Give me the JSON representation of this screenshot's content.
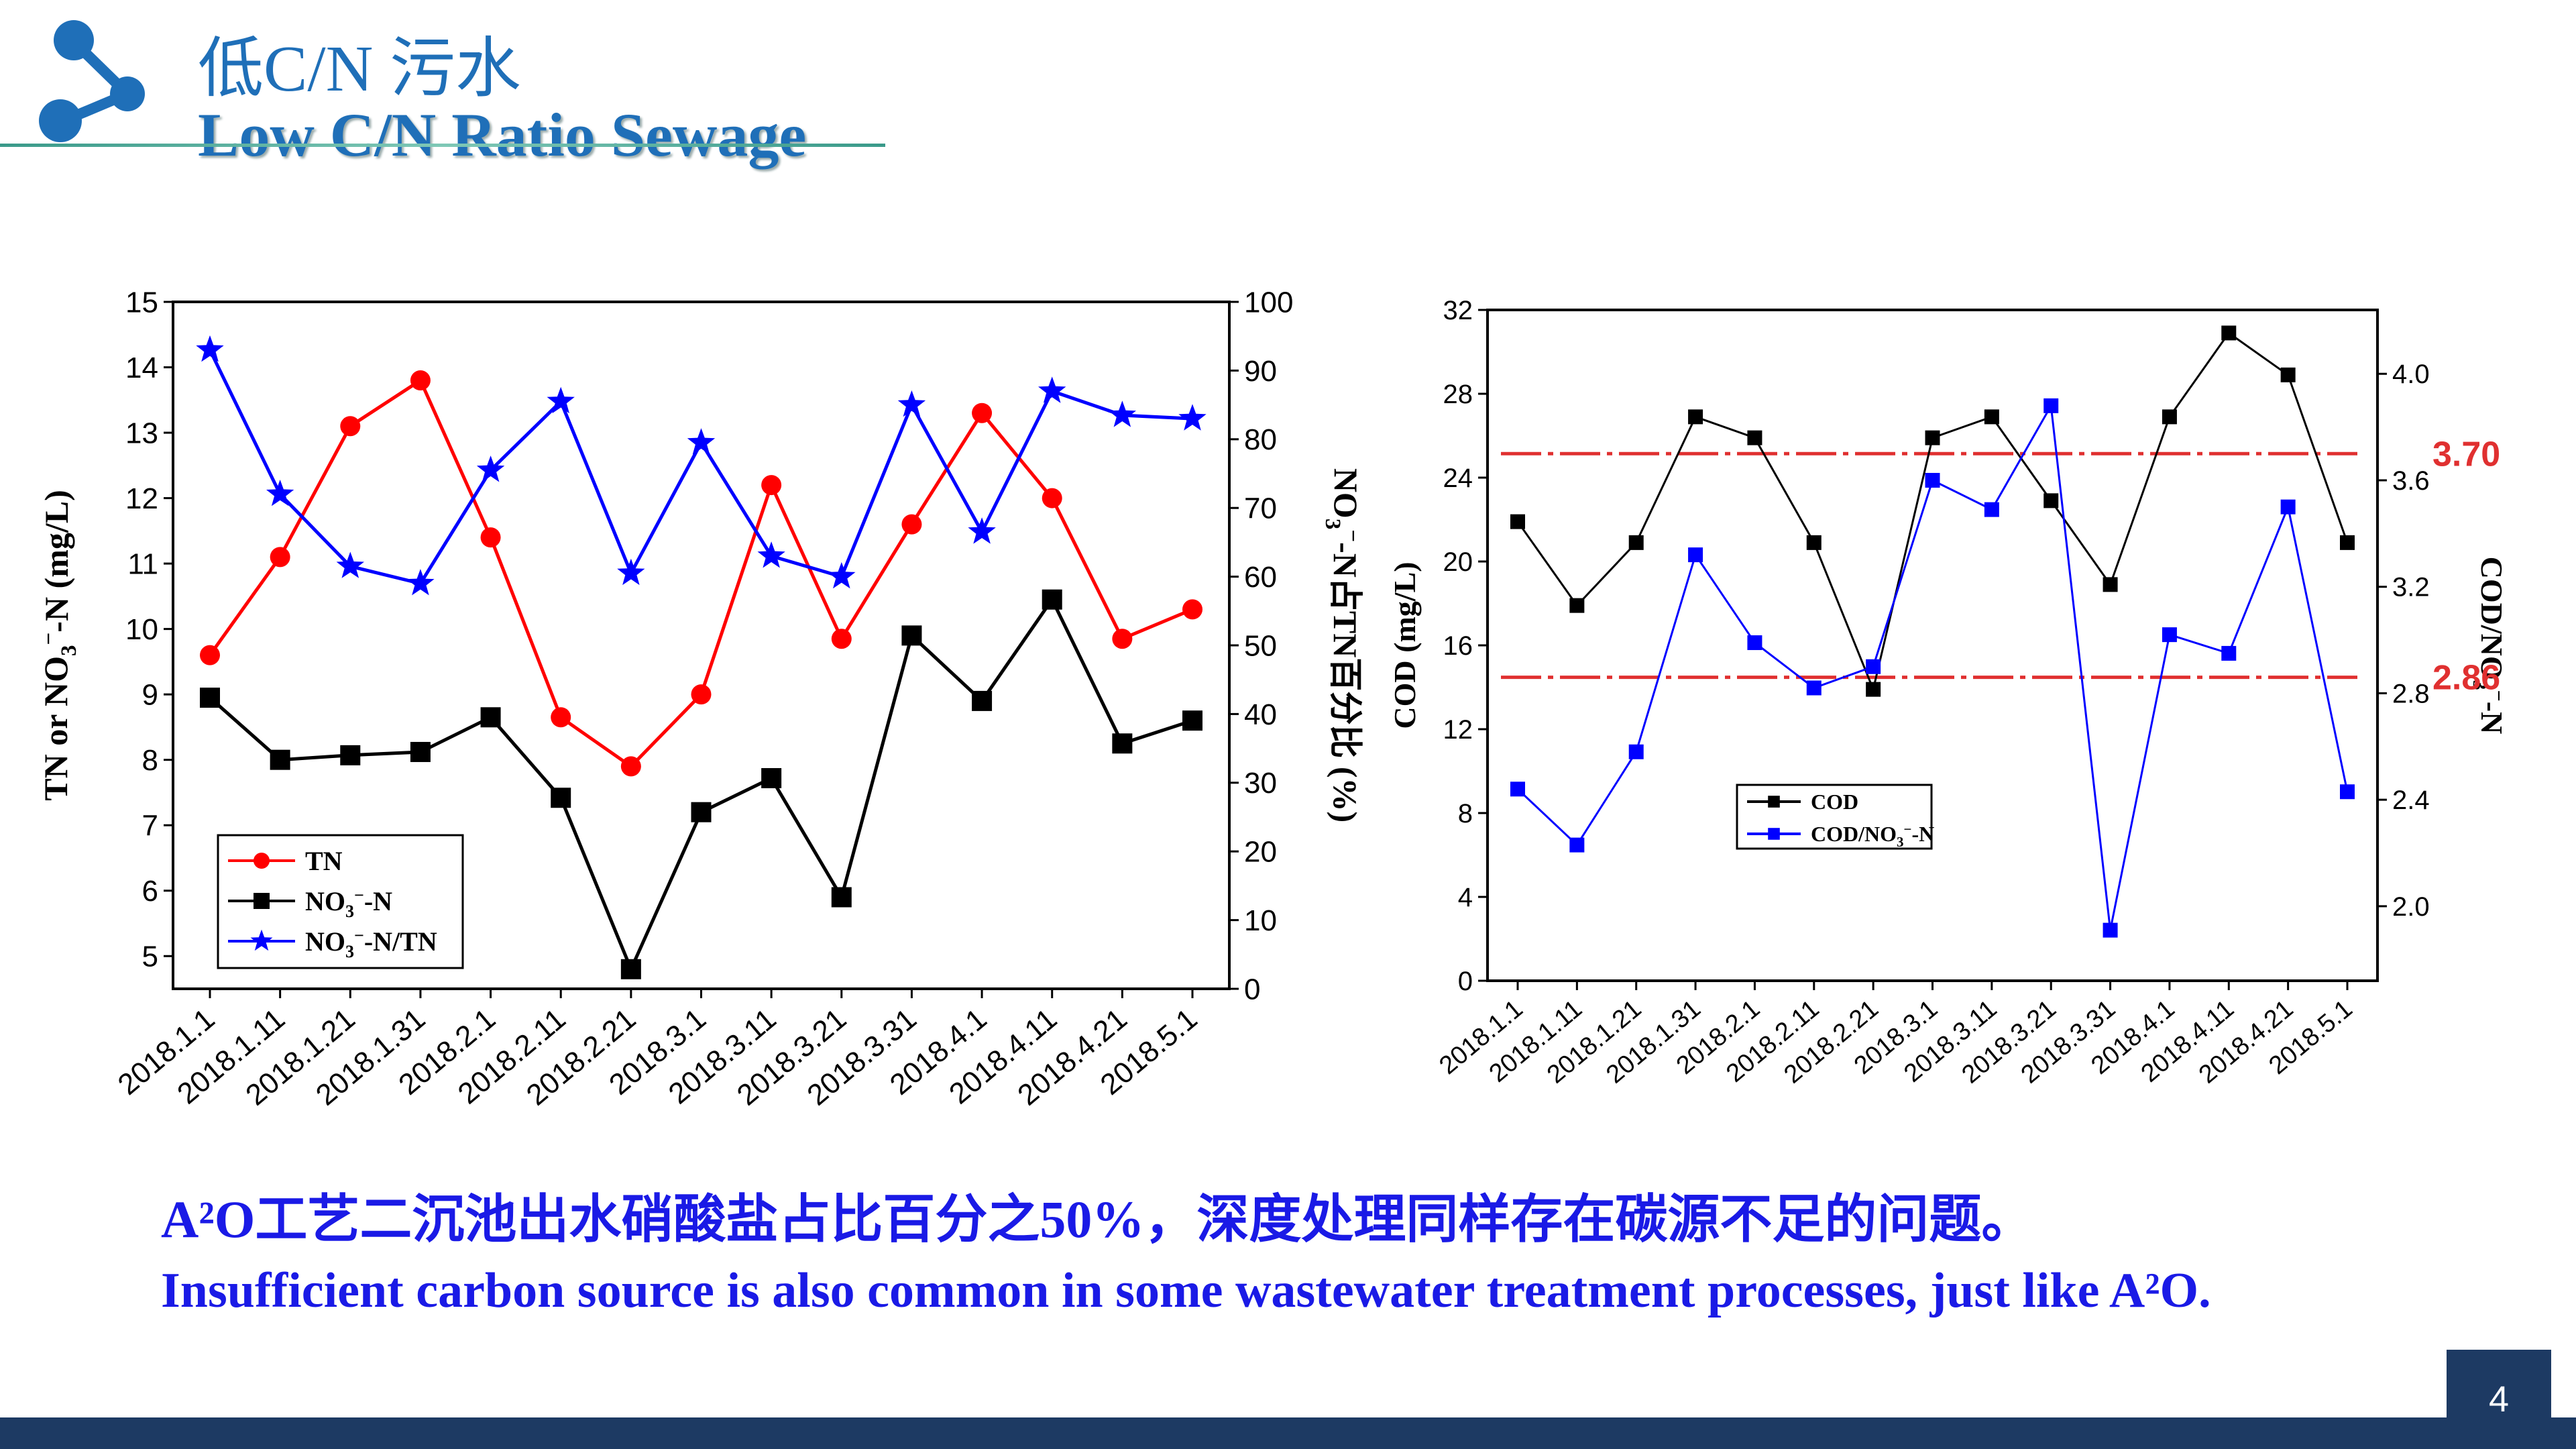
{
  "header": {
    "title_cn": "低C/N 污水",
    "title_en": "Low C/N Ratio Sewage",
    "logo_icon": "molecule-icon",
    "accent_color": "#1f6fb8"
  },
  "chart_data": [
    {
      "type": "line",
      "categories": [
        "2018.1.1",
        "2018.1.11",
        "2018.1.21",
        "2018.1.31",
        "2018.2.1",
        "2018.2.11",
        "2018.2.21",
        "2018.3.1",
        "2018.3.11",
        "2018.3.21",
        "2018.3.31",
        "2018.4.1",
        "2018.4.11",
        "2018.4.21",
        "2018.5.1"
      ],
      "ylabel_left": "TN or NO3⁻-N (mg/L)",
      "ylabel_right": "NO3⁻-N占TN百分比 (%)",
      "ylim_left": [
        4.5,
        15
      ],
      "yticks_left": [
        5,
        6,
        7,
        8,
        9,
        10,
        11,
        12,
        13,
        14,
        15
      ],
      "ylim_right": [
        0,
        100
      ],
      "yticks_right": [
        0,
        10,
        20,
        30,
        40,
        50,
        60,
        70,
        80,
        90,
        100
      ],
      "legend_position": "bottom-left",
      "series": [
        {
          "name": "TN",
          "axis": "left",
          "color": "#ff0000",
          "marker": "circle",
          "values": [
            9.6,
            11.1,
            13.1,
            13.8,
            11.4,
            8.65,
            7.9,
            9.0,
            12.2,
            9.85,
            11.6,
            13.3,
            12.0,
            9.85,
            10.3
          ]
        },
        {
          "name": "NO3⁻-N",
          "axis": "left",
          "color": "#000000",
          "marker": "square",
          "values": [
            8.95,
            8.0,
            8.07,
            8.12,
            8.65,
            7.42,
            4.8,
            7.2,
            7.72,
            5.9,
            9.9,
            8.9,
            10.45,
            8.25,
            8.6
          ]
        },
        {
          "name": "NO3⁻-N/TN",
          "axis": "right",
          "color": "#0000ff",
          "marker": "star",
          "values": [
            93,
            72,
            61.5,
            59,
            75.5,
            85.5,
            60.5,
            79.5,
            63,
            60,
            85,
            66.5,
            87,
            83.5,
            83
          ]
        }
      ],
      "legend": [
        "TN",
        "NO3⁻-N",
        "NO3⁻-N/TN"
      ]
    },
    {
      "type": "line",
      "categories": [
        "2018.1.1",
        "2018.1.11",
        "2018.1.21",
        "2018.1.31",
        "2018.2.1",
        "2018.2.11",
        "2018.2.21",
        "2018.3.1",
        "2018.3.11",
        "2018.3.21",
        "2018.3.31",
        "2018.4.1",
        "2018.4.11",
        "2018.4.21",
        "2018.5.1"
      ],
      "ylabel_left": "COD (mg/L)",
      "ylabel_right": "COD/NO3⁻-N",
      "ylim_left": [
        0,
        32
      ],
      "yticks_left": [
        0,
        4,
        8,
        12,
        16,
        20,
        24,
        28,
        32
      ],
      "ylim_right": [
        1.72,
        4.24
      ],
      "yticks_right": [
        "2.0",
        "2.4",
        "2.8",
        "3.2",
        "3.6",
        "4.0"
      ],
      "legend_position": "middle-left",
      "series": [
        {
          "name": "COD",
          "axis": "left",
          "color": "#000000",
          "marker": "square",
          "values": [
            21.9,
            17.9,
            20.9,
            26.9,
            25.9,
            20.9,
            13.9,
            25.9,
            26.9,
            22.9,
            18.9,
            26.9,
            30.9,
            28.9,
            20.9
          ]
        },
        {
          "name": "COD/NO3⁻-N",
          "axis": "right",
          "color": "#0000ff",
          "marker": "square",
          "values": [
            2.44,
            2.23,
            2.58,
            3.32,
            2.99,
            2.82,
            2.9,
            3.6,
            3.49,
            3.88,
            1.91,
            3.02,
            2.95,
            3.5,
            2.43
          ]
        }
      ],
      "reference_lines": [
        {
          "value": 3.7,
          "label": "3.70",
          "color": "#e03030"
        },
        {
          "value": 2.86,
          "label": "2.86",
          "color": "#e03030"
        }
      ],
      "legend": [
        "COD",
        "COD/NO3⁻-N"
      ]
    }
  ],
  "captions": {
    "line1": "A²O工艺二沉池出水硝酸盐占比百分之50%，深度处理同样存在碳源不足的问题。",
    "line2": "Insufficient carbon source is also common in some wastewater treatment processes, just like A²O."
  },
  "footer": {
    "page_number": "4",
    "bar_color": "#1d3a63"
  }
}
